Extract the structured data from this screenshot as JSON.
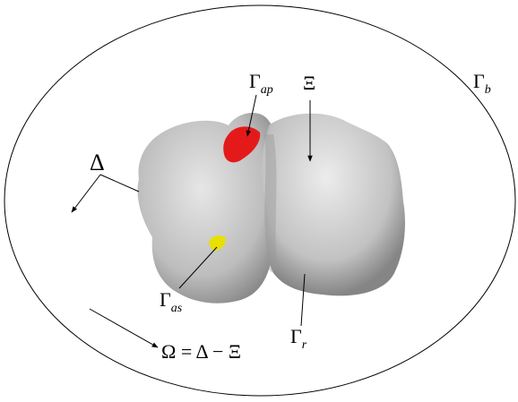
{
  "labels": [
    {
      "text": "Γ",
      "subscript": "ap"
    },
    {
      "text": "Ξ"
    },
    {
      "text": "Γ",
      "subscript": "b"
    },
    {
      "text": "Δ"
    },
    {
      "text": "Γ",
      "subscript": "as"
    },
    {
      "text": "Γ",
      "subscript": "r"
    },
    {
      "text": "Ω = Δ − Ξ"
    }
  ]
}
